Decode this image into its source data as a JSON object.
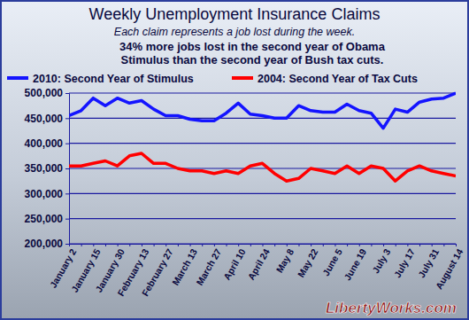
{
  "chart_data": {
    "type": "line",
    "title": "Weekly Unemployment Insurance Claims",
    "subtitle": "Each claim represents a job lost during the week.",
    "annotations": [
      "34% more jobs lost in the second year of Obama",
      "Stimulus than the second year of Bush tax cuts."
    ],
    "watermark": "LibertyWorks.com",
    "categories": [
      "January 2",
      null,
      "January 15",
      null,
      "January 30",
      null,
      "February 13",
      null,
      "February 27",
      null,
      "March 13",
      null,
      "March 27",
      null,
      "April 10",
      null,
      "April 24",
      null,
      "May 8",
      null,
      "May 22",
      null,
      "June 5",
      null,
      "June 19",
      null,
      "July 3",
      null,
      "July 17",
      null,
      "July 31",
      null,
      "August 14"
    ],
    "series": [
      {
        "name": "2010: Second Year of Stimulus",
        "color": "#1414ff",
        "values": [
          455000,
          465000,
          490000,
          475000,
          490000,
          480000,
          485000,
          468000,
          455000,
          455000,
          448000,
          445000,
          445000,
          460000,
          480000,
          458000,
          455000,
          450000,
          450000,
          475000,
          465000,
          462000,
          462000,
          478000,
          465000,
          460000,
          430000,
          468000,
          462000,
          482000,
          488000,
          490000,
          500000
        ]
      },
      {
        "name": "2004: Second Year of Tax Cuts",
        "color": "#ff0000",
        "values": [
          355000,
          355000,
          360000,
          365000,
          355000,
          375000,
          380000,
          360000,
          360000,
          350000,
          345000,
          345000,
          340000,
          345000,
          340000,
          355000,
          360000,
          340000,
          325000,
          330000,
          350000,
          345000,
          340000,
          355000,
          340000,
          355000,
          350000,
          325000,
          345000,
          355000,
          345000,
          340000,
          335000
        ]
      }
    ],
    "ylim": [
      200000,
      500000
    ],
    "yticks": [
      {
        "value": 200000,
        "label": "200,000"
      },
      {
        "value": 250000,
        "label": "250,000"
      },
      {
        "value": 300000,
        "label": "300,000"
      },
      {
        "value": 350000,
        "label": "350,000"
      },
      {
        "value": 400000,
        "label": "400,000"
      },
      {
        "value": 450000,
        "label": "450,000"
      },
      {
        "value": 500000,
        "label": "500,000"
      }
    ],
    "grid": true,
    "legend": "top"
  }
}
